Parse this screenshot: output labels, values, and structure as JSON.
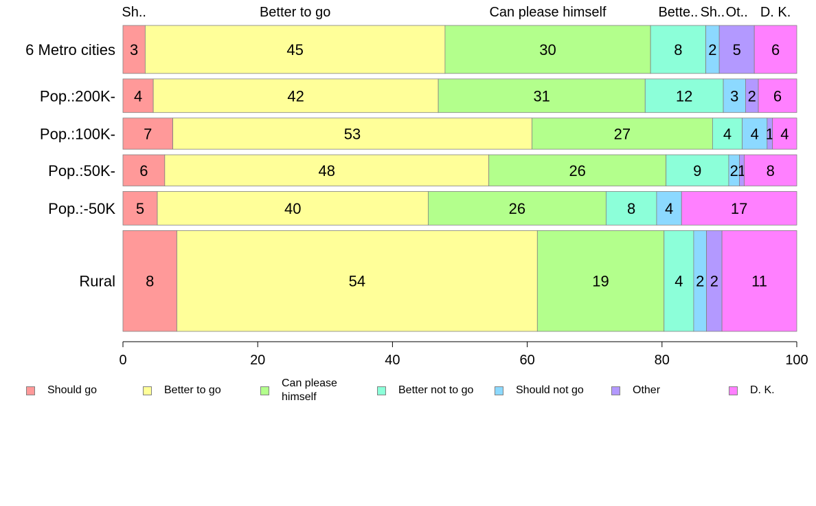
{
  "chart_data": {
    "type": "bar",
    "orientation": "horizontal",
    "stacked": true,
    "categories": [
      "6 Metro cities",
      "Pop.:200K-",
      "Pop.:100K-",
      "Pop.:50K-",
      "Pop.:-50K",
      "Rural"
    ],
    "series": [
      {
        "name": "Should go",
        "color": "#ff9999",
        "values": [
          3.3,
          4.5,
          7.4,
          6.2,
          5.1,
          8.0
        ],
        "labels": [
          "3",
          "4",
          "7",
          "6",
          "5",
          "8"
        ],
        "header": "Sh.."
      },
      {
        "name": "Better to go",
        "color": "#ffff99",
        "values": [
          44.5,
          42.3,
          53.3,
          48.1,
          40.2,
          53.5
        ],
        "labels": [
          "45",
          "42",
          "53",
          "48",
          "40",
          "54"
        ],
        "header": "Better to go"
      },
      {
        "name": "Can please himself",
        "color": "#b3ff8c",
        "values": [
          30.5,
          30.7,
          26.8,
          26.3,
          26.4,
          18.8
        ],
        "labels": [
          "30",
          "31",
          "27",
          "26",
          "26",
          "19"
        ],
        "header": "Can please himself"
      },
      {
        "name": "Better not to go",
        "color": "#8cffd9",
        "values": [
          8.2,
          11.6,
          4.4,
          9.3,
          7.5,
          4.4
        ],
        "labels": [
          "8",
          "12",
          "4",
          "9",
          "8",
          "4"
        ],
        "header": "Bette.."
      },
      {
        "name": "Should not go",
        "color": "#8cd9ff",
        "values": [
          2.0,
          3.3,
          3.7,
          1.6,
          3.7,
          1.9
        ],
        "labels": [
          "2",
          "3",
          "4",
          "2",
          "4",
          "2"
        ],
        "header": "Sh.."
      },
      {
        "name": "Other",
        "color": "#b399ff",
        "values": [
          5.2,
          1.9,
          0.8,
          0.7,
          0.0,
          2.3
        ],
        "labels": [
          "5",
          "2",
          "1",
          "1",
          "",
          "2"
        ],
        "header": "Ot.."
      },
      {
        "name": "D. K.",
        "color": "#ff80ff",
        "values": [
          6.3,
          5.7,
          3.6,
          7.8,
          17.1,
          11.1
        ],
        "labels": [
          "6",
          "6",
          "4",
          "8",
          "17",
          "11"
        ],
        "header": "D. K."
      }
    ],
    "bar_weights": [
      1,
      0.7,
      0.65,
      0.65,
      0.7,
      2.1
    ],
    "xlim": [
      0,
      100
    ],
    "xticks": [
      "0",
      "20",
      "40",
      "60",
      "80",
      "100"
    ],
    "title": "",
    "xlabel": "",
    "ylabel": "",
    "legend_position": "bottom",
    "grid": false
  },
  "legend": {
    "items": [
      {
        "label": "Should go",
        "color": "#ff9999"
      },
      {
        "label": "Better to go",
        "color": "#ffff99"
      },
      {
        "label": "Can please himself",
        "color": "#b3ff8c"
      },
      {
        "label": "Better not to go",
        "color": "#8cffd9"
      },
      {
        "label": "Should not go",
        "color": "#8cd9ff"
      },
      {
        "label": "Other",
        "color": "#b399ff"
      },
      {
        "label": "D. K.",
        "color": "#ff80ff"
      }
    ]
  }
}
